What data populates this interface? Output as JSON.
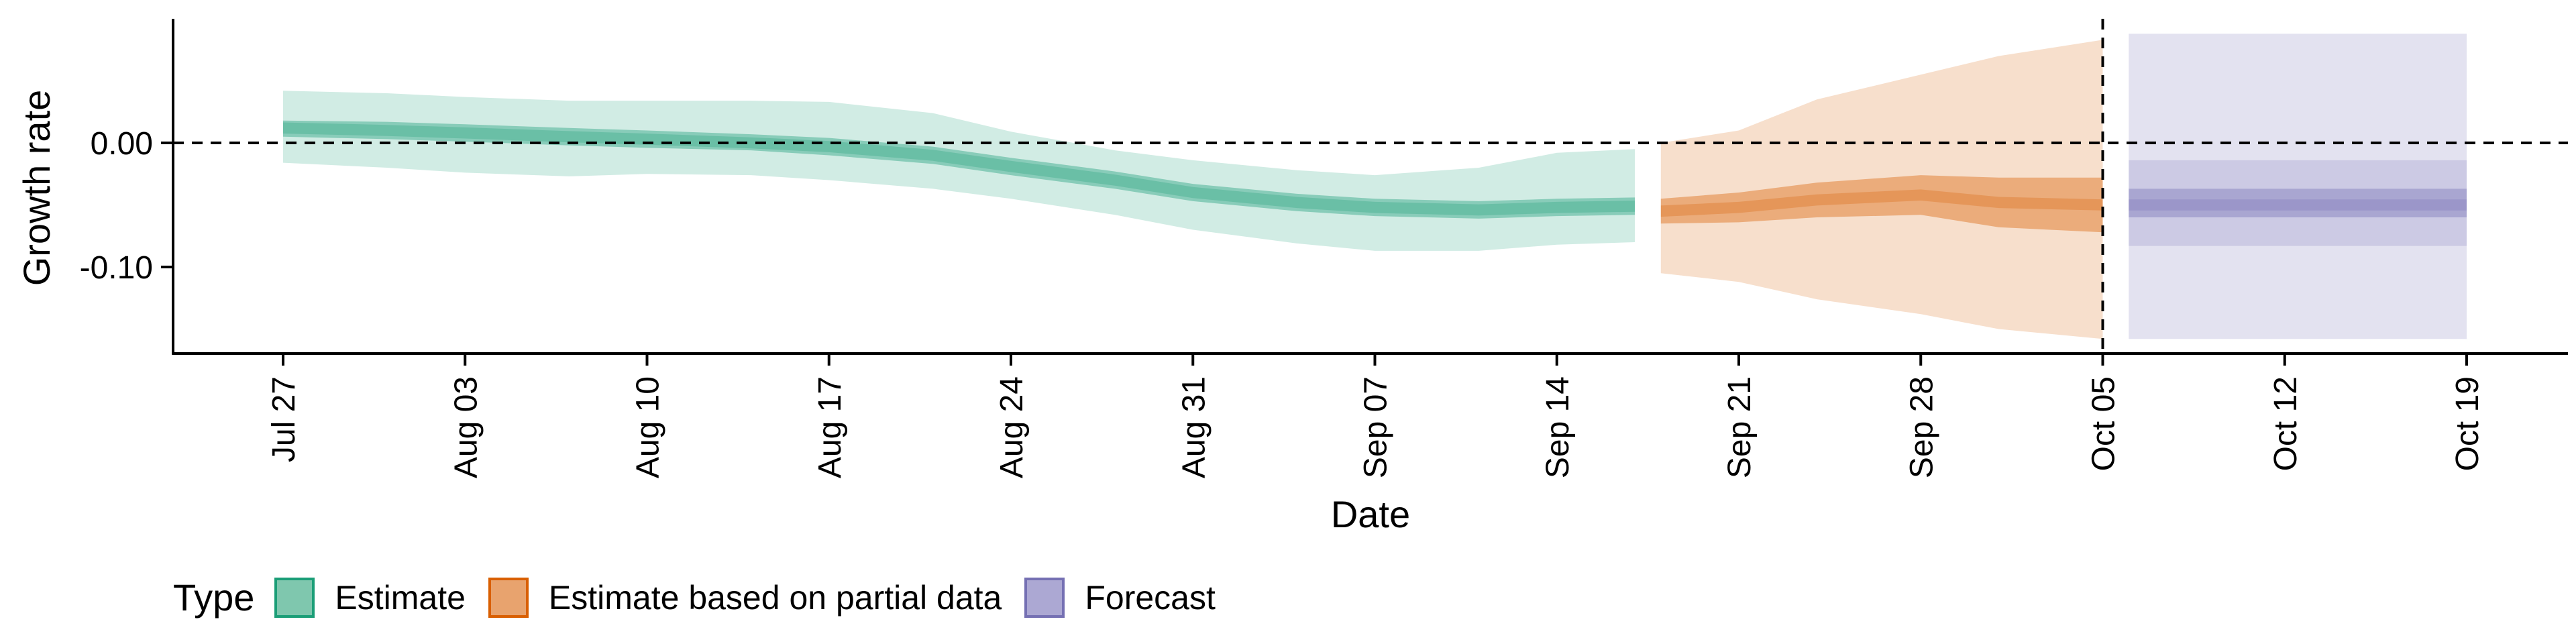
{
  "colors": {
    "estimate_fill": "#1b9e77",
    "estimate_swatch": "#7fc7ae",
    "partial_fill": "#d95f02",
    "partial_swatch": "#e8a36e",
    "forecast_fill": "#7570b3",
    "forecast_swatch": "#aca8d3"
  },
  "chart_data": {
    "type": "area",
    "xlabel": "Date",
    "ylabel": "Growth rate",
    "x_ticks": [
      "Jul 27",
      "Aug 03",
      "Aug 10",
      "Aug 17",
      "Aug 24",
      "Aug 31",
      "Sep 07",
      "Sep 14",
      "Sep 21",
      "Sep 28",
      "Oct 05",
      "Oct 12",
      "Oct 19"
    ],
    "y_ticks": [
      "0.00",
      "-0.10"
    ],
    "xlim": [
      "2020-07-27",
      "2020-10-19"
    ],
    "ylim": [
      -0.16,
      0.09
    ],
    "reference_lines": [
      {
        "axis": "y",
        "value": 0,
        "style": "dashed"
      },
      {
        "axis": "x",
        "value": "2020-10-05",
        "style": "dashed"
      }
    ],
    "grid": false,
    "legend": {
      "title": "Type",
      "position": "bottom-left",
      "entries": [
        "Estimate",
        "Estimate based on partial data",
        "Forecast"
      ]
    },
    "series": [
      {
        "name": "Estimate",
        "type": "Estimate",
        "points": [
          {
            "date": "2020-07-27",
            "median": 0.012,
            "q25": 0.005,
            "q75": 0.018,
            "lo": -0.016,
            "hi": 0.042
          },
          {
            "date": "2020-07-31",
            "median": 0.01,
            "q25": 0.003,
            "q75": 0.017,
            "lo": -0.02,
            "hi": 0.04
          },
          {
            "date": "2020-08-03",
            "median": 0.008,
            "q25": 0.001,
            "q75": 0.015,
            "lo": -0.024,
            "hi": 0.037
          },
          {
            "date": "2020-08-07",
            "median": 0.005,
            "q25": -0.002,
            "q75": 0.012,
            "lo": -0.027,
            "hi": 0.034
          },
          {
            "date": "2020-08-10",
            "median": 0.003,
            "q25": -0.004,
            "q75": 0.01,
            "lo": -0.025,
            "hi": 0.034
          },
          {
            "date": "2020-08-14",
            "median": 0.0,
            "q25": -0.006,
            "q75": 0.007,
            "lo": -0.026,
            "hi": 0.034
          },
          {
            "date": "2020-08-17",
            "median": -0.003,
            "q25": -0.01,
            "q75": 0.004,
            "lo": -0.03,
            "hi": 0.033
          },
          {
            "date": "2020-08-21",
            "median": -0.01,
            "q25": -0.017,
            "q75": -0.003,
            "lo": -0.037,
            "hi": 0.024
          },
          {
            "date": "2020-08-24",
            "median": -0.019,
            "q25": -0.026,
            "q75": -0.012,
            "lo": -0.045,
            "hi": 0.009
          },
          {
            "date": "2020-08-28",
            "median": -0.03,
            "q25": -0.037,
            "q75": -0.023,
            "lo": -0.058,
            "hi": -0.006
          },
          {
            "date": "2020-08-31",
            "median": -0.04,
            "q25": -0.047,
            "q75": -0.033,
            "lo": -0.07,
            "hi": -0.014
          },
          {
            "date": "2020-09-04",
            "median": -0.048,
            "q25": -0.055,
            "q75": -0.041,
            "lo": -0.081,
            "hi": -0.022
          },
          {
            "date": "2020-09-07",
            "median": -0.052,
            "q25": -0.059,
            "q75": -0.045,
            "lo": -0.087,
            "hi": -0.026
          },
          {
            "date": "2020-09-11",
            "median": -0.054,
            "q25": -0.061,
            "q75": -0.047,
            "lo": -0.087,
            "hi": -0.02
          },
          {
            "date": "2020-09-14",
            "median": -0.052,
            "q25": -0.059,
            "q75": -0.045,
            "lo": -0.082,
            "hi": -0.008
          },
          {
            "date": "2020-09-17",
            "median": -0.051,
            "q25": -0.058,
            "q75": -0.044,
            "lo": -0.08,
            "hi": -0.005
          }
        ]
      },
      {
        "name": "Estimate based on partial data",
        "type": "Estimate based on partial data",
        "points": [
          {
            "date": "2020-09-18",
            "median": -0.055,
            "q25": -0.065,
            "q75": -0.045,
            "lo": -0.105,
            "hi": 0.0
          },
          {
            "date": "2020-09-21",
            "median": -0.052,
            "q25": -0.064,
            "q75": -0.04,
            "lo": -0.112,
            "hi": 0.01
          },
          {
            "date": "2020-09-24",
            "median": -0.046,
            "q25": -0.06,
            "q75": -0.032,
            "lo": -0.126,
            "hi": 0.035
          },
          {
            "date": "2020-09-28",
            "median": -0.042,
            "q25": -0.058,
            "q75": -0.026,
            "lo": -0.138,
            "hi": 0.055
          },
          {
            "date": "2020-10-01",
            "median": -0.048,
            "q25": -0.068,
            "q75": -0.028,
            "lo": -0.15,
            "hi": 0.07
          },
          {
            "date": "2020-10-05",
            "median": -0.05,
            "q25": -0.072,
            "q75": -0.028,
            "lo": -0.158,
            "hi": 0.083
          }
        ]
      },
      {
        "name": "Forecast",
        "type": "Forecast",
        "points": [
          {
            "date": "2020-10-06",
            "median": -0.05,
            "q25": -0.06,
            "q75": -0.037,
            "lo": -0.158,
            "hi": 0.088
          },
          {
            "date": "2020-10-19",
            "median": -0.05,
            "q25": -0.06,
            "q75": -0.037,
            "lo": -0.158,
            "hi": 0.088
          }
        ],
        "mid_band": {
          "lo": -0.083,
          "hi": -0.014
        }
      }
    ]
  }
}
